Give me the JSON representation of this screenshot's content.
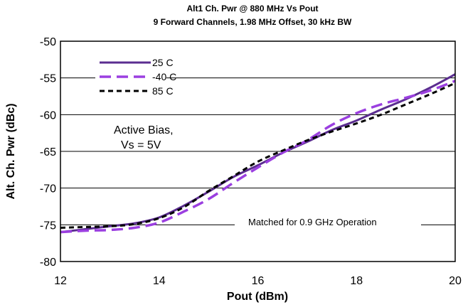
{
  "chart_data": {
    "type": "line",
    "title": "Alt1 Ch. Pwr @ 880 MHz Vs Pout",
    "subtitle": "9 Forward Channels, 1.98 MHz Offset, 30   kHz BW",
    "xlabel": "Pout (dBm)",
    "ylabel": "Alt. Ch. Pwr (dBc)",
    "xlim": [
      12,
      20
    ],
    "ylim": [
      -80,
      -50
    ],
    "xticks": [
      12,
      14,
      16,
      18,
      20
    ],
    "yticks": [
      -50,
      -55,
      -60,
      -65,
      -70,
      -75,
      -80
    ],
    "grid": "horizontal",
    "legend_position": "top-left",
    "series": [
      {
        "name": "25 C",
        "color": "#5b2d90",
        "dash": "solid",
        "x": [
          12,
          12.5,
          13,
          13.5,
          14,
          14.5,
          15,
          15.5,
          16,
          16.5,
          17,
          17.5,
          18,
          18.5,
          19,
          19.5,
          20
        ],
        "y": [
          -76.0,
          -75.6,
          -75.2,
          -74.8,
          -74.0,
          -72.4,
          -70.5,
          -68.5,
          -66.9,
          -65.2,
          -63.7,
          -62.1,
          -60.8,
          -59.3,
          -57.9,
          -56.3,
          -54.5
        ]
      },
      {
        "name": "-40 C",
        "color": "#9b3fe0",
        "dash": "long-dash",
        "x": [
          12,
          12.5,
          13,
          13.5,
          14,
          14.5,
          15,
          15.5,
          16,
          16.5,
          17,
          17.5,
          18,
          18.5,
          19,
          19.5,
          20
        ],
        "y": [
          -76.0,
          -75.8,
          -75.7,
          -75.4,
          -74.7,
          -73.2,
          -71.5,
          -69.3,
          -67.2,
          -65.2,
          -63.5,
          -61.4,
          -59.8,
          -58.6,
          -57.7,
          -56.7,
          -55.4
        ]
      },
      {
        "name": "85 C",
        "color": "#000000",
        "dash": "short-dash",
        "x": [
          12,
          12.5,
          13,
          13.5,
          14,
          14.5,
          15,
          15.5,
          16,
          16.5,
          17,
          17.5,
          18,
          18.5,
          19,
          19.5,
          20
        ],
        "y": [
          -75.4,
          -75.3,
          -75.2,
          -74.9,
          -74.1,
          -72.6,
          -70.4,
          -68.4,
          -66.4,
          -64.9,
          -63.5,
          -62.3,
          -61.2,
          -60.0,
          -58.6,
          -57.2,
          -55.7
        ]
      }
    ],
    "annotations": [
      "Active Bias,",
      "Vs = 5V",
      "Matched for 0.9 GHz Operation"
    ]
  }
}
